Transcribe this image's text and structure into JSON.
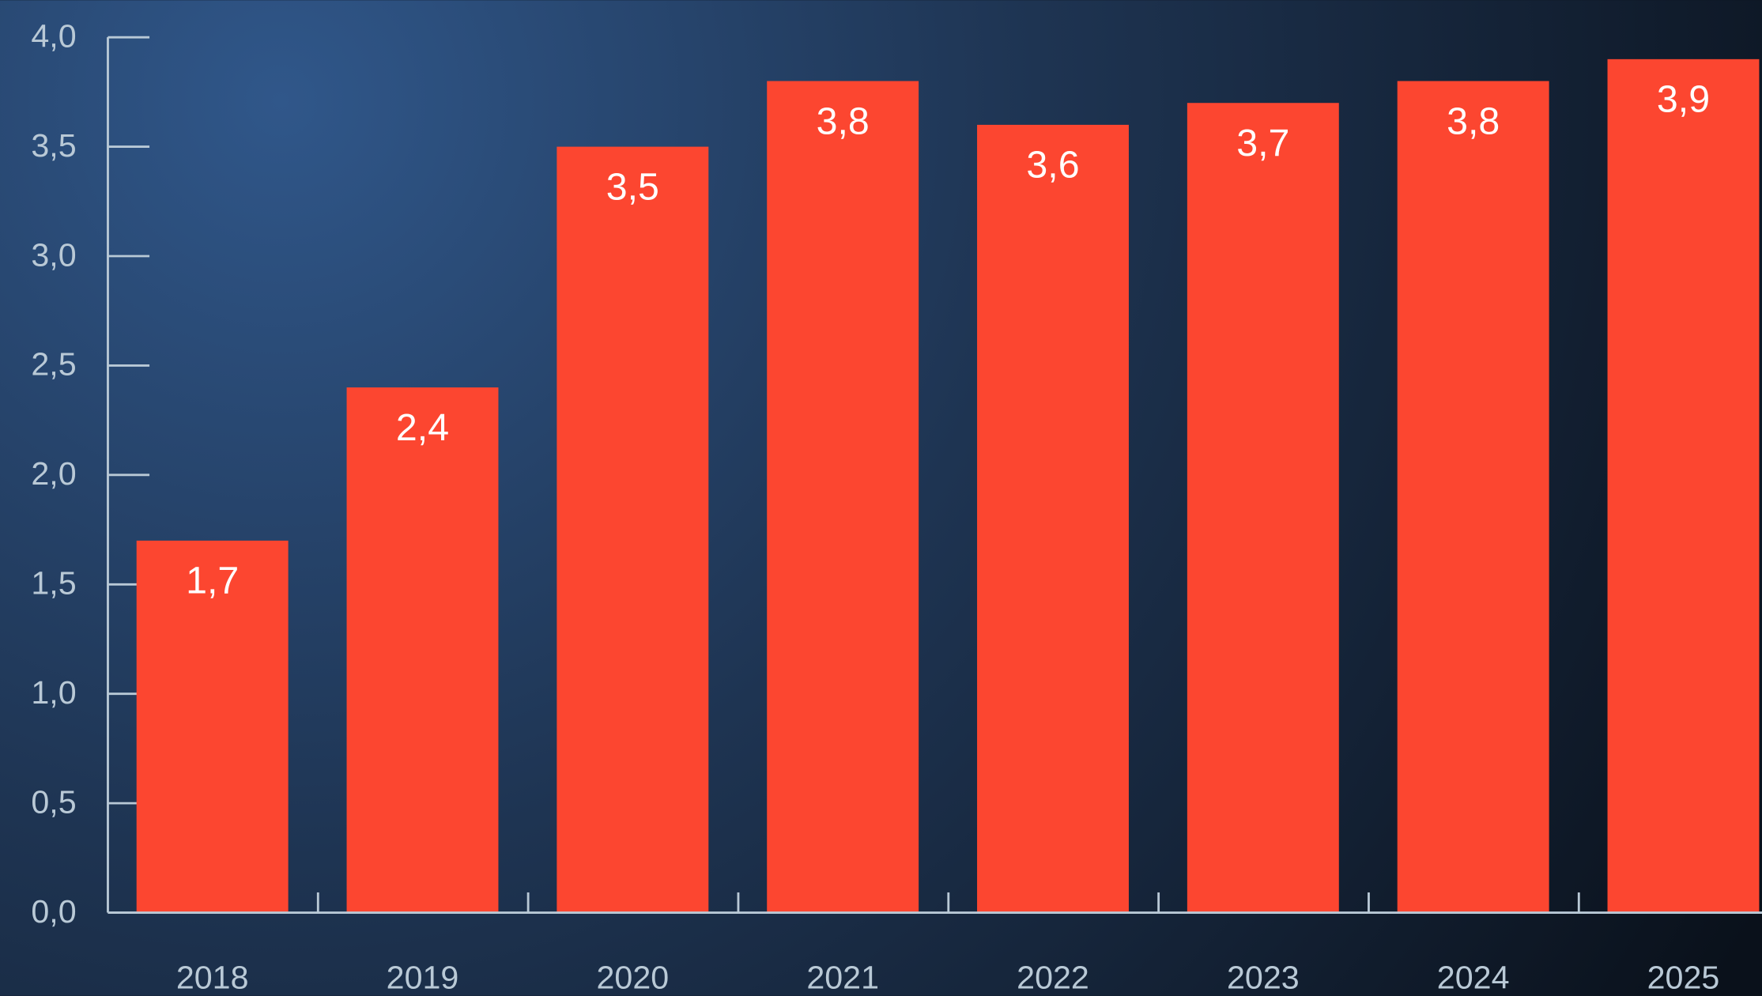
{
  "chart_data": {
    "type": "bar",
    "categories": [
      "2018",
      "2019",
      "2020",
      "2021",
      "2022",
      "2023",
      "2024",
      "2025"
    ],
    "values": [
      1.7,
      2.4,
      3.5,
      3.8,
      3.6,
      3.7,
      3.8,
      3.9
    ],
    "value_labels": [
      "1,7",
      "2,4",
      "3,5",
      "3,8",
      "3,6",
      "3,7",
      "3,8",
      "3,9"
    ],
    "color": "#fc4630",
    "ylim": [
      0,
      4
    ],
    "yticks": [
      {
        "value": 0,
        "label": "0,0"
      },
      {
        "value": 0.5,
        "label": "0,5"
      },
      {
        "value": 1,
        "label": "1,0"
      },
      {
        "value": 1.5,
        "label": "1,5"
      },
      {
        "value": 2,
        "label": "2,0"
      },
      {
        "value": 2.5,
        "label": "2,5"
      },
      {
        "value": 3,
        "label": "3,0"
      },
      {
        "value": 3.5,
        "label": "3,5"
      },
      {
        "value": 4,
        "label": "4,0"
      }
    ],
    "grid": false
  }
}
